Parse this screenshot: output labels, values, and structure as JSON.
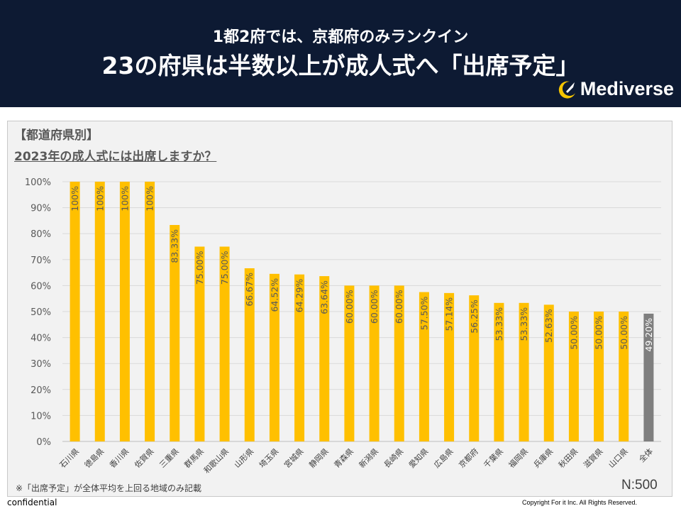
{
  "header": {
    "subtitle": "1都2府では、京都府のみランクイン",
    "title": "23の府県は半数以上が成人式へ「出席予定」",
    "logo_text": "Mediverse"
  },
  "chart_data": {
    "type": "bar",
    "title_line1": "【都道府県別】",
    "title_line2": "2023年の成人式には出席しますか？",
    "categories": [
      "石川県",
      "徳島県",
      "香川県",
      "佐賀県",
      "三重県",
      "群馬県",
      "和歌山県",
      "山形県",
      "埼玉県",
      "宮城県",
      "静岡県",
      "青森県",
      "新潟県",
      "長崎県",
      "愛知県",
      "広島県",
      "京都府",
      "千葉県",
      "福岡県",
      "兵庫県",
      "秋田県",
      "滋賀県",
      "山口県",
      "全体"
    ],
    "values": [
      100,
      100,
      100,
      100,
      83.33,
      75.0,
      75.0,
      66.67,
      64.52,
      64.29,
      63.64,
      60.0,
      60.0,
      60.0,
      57.5,
      57.14,
      56.25,
      53.33,
      53.33,
      52.63,
      50.0,
      50.0,
      50.0,
      49.2
    ],
    "data_labels": [
      "100%",
      "100%",
      "100%",
      "100%",
      "83.33%",
      "75.00%",
      "75.00%",
      "66.67%",
      "64.52%",
      "64.29%",
      "63.64%",
      "60.00%",
      "60.00%",
      "60.00%",
      "57.50%",
      "57.14%",
      "56.25%",
      "53.33%",
      "53.33%",
      "52.63%",
      "50.00%",
      "50.00%",
      "50.00%",
      "49.20%"
    ],
    "y_ticks": [
      "0%",
      "10%",
      "20%",
      "30%",
      "40%",
      "50%",
      "60%",
      "70%",
      "80%",
      "90%",
      "100%"
    ],
    "ylim": [
      0,
      100
    ],
    "colors": {
      "bar": "#ffc000",
      "total_bar": "#7f7f7f",
      "label": "#595959",
      "total_label": "#ffffff"
    },
    "note": "※「出席予定」が全体平均を上回る地域のみ記載",
    "sample_size": "N:500"
  },
  "footer": {
    "confidential": "confidential",
    "copyright": "Copyright For it Inc. All Rights Reserved."
  }
}
